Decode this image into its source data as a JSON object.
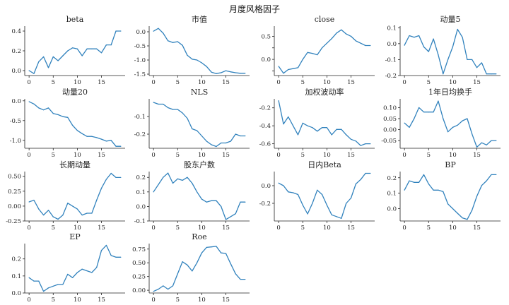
{
  "figure_title": "月度风格因子",
  "colors": {
    "line": "#3182bd",
    "axis": "#222222",
    "background": "#ffffff"
  },
  "chart_data": [
    {
      "type": "line",
      "title": "beta",
      "x": [
        0,
        1,
        2,
        3,
        4,
        5,
        6,
        7,
        8,
        9,
        10,
        11,
        12,
        13,
        14,
        15,
        16,
        17,
        18,
        19
      ],
      "values": [
        0.0,
        -0.03,
        0.09,
        0.14,
        0.03,
        0.14,
        0.1,
        0.15,
        0.2,
        0.23,
        0.22,
        0.15,
        0.22,
        0.22,
        0.22,
        0.18,
        0.26,
        0.26,
        0.4,
        0.4
      ],
      "ylim": [
        -0.05,
        0.45
      ],
      "yticks": [
        0.0,
        0.2,
        0.4
      ],
      "ytick_labels": [
        "0.0",
        "0.2",
        "0.4"
      ],
      "xticks": [
        0,
        5,
        10,
        15
      ],
      "xtick_labels": [
        "0",
        "5",
        "10",
        "15"
      ]
    },
    {
      "type": "line",
      "title": "市值",
      "x": [
        0,
        1,
        2,
        3,
        4,
        5,
        6,
        7,
        8,
        9,
        10,
        11,
        12,
        13,
        14,
        15,
        16,
        17,
        18,
        19
      ],
      "values": [
        0.02,
        0.12,
        -0.05,
        -0.32,
        -0.38,
        -0.35,
        -0.48,
        -0.83,
        -0.97,
        -1.0,
        -1.1,
        -1.23,
        -1.43,
        -1.48,
        -1.45,
        -1.38,
        -1.42,
        -1.45,
        -1.47,
        -1.47
      ],
      "ylim": [
        -1.55,
        0.2
      ],
      "yticks": [
        0.0,
        -0.5,
        -1.0,
        -1.5
      ],
      "ytick_labels": [
        "0.0",
        "-0.5",
        "-1.0",
        "-1.5"
      ],
      "xticks": [
        0,
        5,
        10,
        15
      ],
      "xtick_labels": [
        "0",
        "5",
        "10",
        "15"
      ]
    },
    {
      "type": "line",
      "title": "close",
      "x": [
        0,
        1,
        2,
        3,
        4,
        5,
        6,
        7,
        8,
        9,
        10,
        11,
        12,
        13,
        14,
        15,
        16,
        17,
        18,
        19
      ],
      "values": [
        -0.15,
        -0.3,
        -0.22,
        -0.2,
        -0.18,
        0.0,
        0.15,
        0.13,
        0.1,
        0.25,
        0.35,
        0.45,
        0.57,
        0.64,
        0.55,
        0.5,
        0.4,
        0.35,
        0.3,
        0.3
      ],
      "ylim": [
        -0.35,
        0.72
      ],
      "yticks": [
        -0.25,
        0.0,
        0.25,
        0.5
      ],
      "ytick_labels": [
        "",
        "0.0",
        "",
        "0.5"
      ],
      "xticks": [
        0,
        5,
        10,
        15
      ],
      "xtick_labels": [
        "0",
        "5",
        "10",
        "15"
      ]
    },
    {
      "type": "line",
      "title": "动量5",
      "x": [
        0,
        1,
        2,
        3,
        4,
        5,
        6,
        7,
        8,
        9,
        10,
        11,
        12,
        13,
        14,
        15,
        16,
        17,
        18,
        19
      ],
      "values": [
        -0.01,
        0.05,
        0.04,
        0.05,
        -0.02,
        -0.05,
        0.03,
        -0.07,
        -0.19,
        -0.1,
        -0.02,
        0.09,
        0.04,
        -0.1,
        -0.1,
        -0.15,
        -0.12,
        -0.19,
        -0.19,
        -0.19
      ],
      "ylim": [
        -0.2,
        0.11
      ],
      "yticks": [
        -0.2,
        -0.1,
        0.0,
        0.1
      ],
      "ytick_labels": [
        "-0.2",
        "-0.1",
        "0.0",
        "0.1"
      ],
      "xticks": [
        0,
        5,
        10,
        15
      ],
      "xtick_labels": [
        "0",
        "5",
        "10",
        "15"
      ]
    },
    {
      "type": "line",
      "title": "动量20",
      "x": [
        0,
        1,
        2,
        3,
        4,
        5,
        6,
        7,
        8,
        9,
        10,
        11,
        12,
        13,
        14,
        15,
        16,
        17,
        18,
        19
      ],
      "values": [
        -0.02,
        -0.08,
        -0.18,
        -0.23,
        -0.18,
        -0.32,
        -0.35,
        -0.4,
        -0.42,
        -0.62,
        -0.75,
        -0.83,
        -0.9,
        -0.9,
        -0.93,
        -0.97,
        -1.02,
        -1.0,
        -1.15,
        -1.15
      ],
      "ylim": [
        -1.2,
        0.05
      ],
      "yticks": [
        0.0,
        -0.5,
        -1.0
      ],
      "ytick_labels": [
        "0.0",
        "-0.5",
        "-1.0"
      ],
      "xticks": [
        0,
        5,
        10,
        15
      ],
      "xtick_labels": [
        "0",
        "5",
        "10",
        "15"
      ]
    },
    {
      "type": "line",
      "title": "NLS",
      "x": [
        0,
        1,
        2,
        3,
        4,
        5,
        6,
        7,
        8,
        9,
        10,
        11,
        12,
        13,
        14,
        15,
        16,
        17,
        18,
        19
      ],
      "values": [
        -0.02,
        -0.03,
        -0.03,
        -0.05,
        -0.06,
        -0.06,
        -0.08,
        -0.11,
        -0.17,
        -0.18,
        -0.21,
        -0.24,
        -0.26,
        -0.27,
        -0.25,
        -0.25,
        -0.24,
        -0.2,
        -0.21,
        -0.21
      ],
      "ylim": [
        -0.28,
        0.0
      ],
      "yticks": [
        -0.1,
        -0.2
      ],
      "ytick_labels": [
        "-0.1",
        "-0.2"
      ],
      "xticks": [
        0,
        5,
        10,
        15
      ],
      "xtick_labels": [
        "0",
        "5",
        "10",
        "15"
      ]
    },
    {
      "type": "line",
      "title": "加权波动率",
      "x": [
        0,
        1,
        2,
        3,
        4,
        5,
        6,
        7,
        8,
        9,
        10,
        11,
        12,
        13,
        14,
        15,
        16,
        17,
        18,
        19
      ],
      "values": [
        -0.12,
        -0.38,
        -0.3,
        -0.4,
        -0.5,
        -0.37,
        -0.4,
        -0.42,
        -0.46,
        -0.42,
        -0.42,
        -0.5,
        -0.44,
        -0.44,
        -0.5,
        -0.55,
        -0.57,
        -0.62,
        -0.6,
        -0.6
      ],
      "ylim": [
        -0.65,
        -0.1
      ],
      "yticks": [
        -0.2,
        -0.4,
        -0.6
      ],
      "ytick_labels": [
        "-0.2",
        "-0.4",
        "-0.6"
      ],
      "xticks": [
        0,
        5,
        10,
        15
      ],
      "xtick_labels": [
        "0",
        "5",
        "10",
        "15"
      ]
    },
    {
      "type": "line",
      "title": "1年日均换手",
      "x": [
        0,
        1,
        2,
        3,
        4,
        5,
        6,
        7,
        8,
        9,
        10,
        11,
        12,
        13,
        14,
        15,
        16,
        17,
        18,
        19
      ],
      "values": [
        0.03,
        0.01,
        0.05,
        0.1,
        0.08,
        0.08,
        0.08,
        0.13,
        0.05,
        -0.01,
        0.01,
        0.02,
        0.04,
        0.05,
        -0.02,
        -0.08,
        -0.06,
        -0.07,
        -0.05,
        -0.05
      ],
      "ylim": [
        -0.085,
        0.14
      ],
      "yticks": [
        -0.05,
        0.0,
        0.05,
        0.1
      ],
      "ytick_labels": [
        "-0.05",
        "0.00",
        "0.05",
        "0.10"
      ],
      "xticks": [
        0,
        5,
        10,
        15
      ],
      "xtick_labels": [
        "0",
        "5",
        "10",
        "15"
      ]
    },
    {
      "type": "line",
      "title": "长期动量",
      "x": [
        0,
        1,
        2,
        3,
        4,
        5,
        6,
        7,
        8,
        9,
        10,
        11,
        12,
        13,
        14,
        15,
        16,
        17,
        18,
        19
      ],
      "values": [
        0.07,
        0.1,
        -0.05,
        -0.15,
        -0.07,
        -0.18,
        -0.22,
        -0.15,
        0.05,
        0.0,
        -0.05,
        -0.15,
        -0.12,
        -0.12,
        0.1,
        0.3,
        0.45,
        0.55,
        0.48,
        0.48
      ],
      "ylim": [
        -0.25,
        0.58
      ],
      "yticks": [
        -0.25,
        0.0,
        0.25,
        0.5
      ],
      "ytick_labels": [
        "-0.25",
        "0.00",
        "0.25",
        "0.50"
      ],
      "xticks": [
        0,
        5,
        10,
        15
      ],
      "xtick_labels": [
        "0",
        "5",
        "10",
        "15"
      ]
    },
    {
      "type": "line",
      "title": "股东户数",
      "x": [
        0,
        1,
        2,
        3,
        4,
        5,
        6,
        7,
        8,
        9,
        10,
        11,
        12,
        13,
        14,
        15,
        16,
        17,
        18,
        19
      ],
      "values": [
        0.1,
        0.15,
        0.2,
        0.23,
        0.16,
        0.19,
        0.18,
        0.2,
        0.16,
        0.1,
        0.05,
        0.03,
        0.04,
        0.04,
        0.0,
        -0.09,
        -0.07,
        -0.05,
        0.03,
        0.03
      ],
      "ylim": [
        -0.1,
        0.24
      ],
      "yticks": [
        -0.1,
        0.0,
        0.1,
        0.2
      ],
      "ytick_labels": [
        "-0.1",
        "0.0",
        "0.1",
        "0.2"
      ],
      "xticks": [
        0,
        5,
        10,
        15
      ],
      "xtick_labels": [
        "0",
        "5",
        "10",
        "15"
      ]
    },
    {
      "type": "line",
      "title": "日内Beta",
      "x": [
        0,
        1,
        2,
        3,
        4,
        5,
        6,
        7,
        8,
        9,
        10,
        11,
        12,
        13,
        14,
        15,
        16,
        17,
        18,
        19
      ],
      "values": [
        0.03,
        0.0,
        -0.07,
        -0.08,
        -0.1,
        -0.22,
        -0.32,
        -0.2,
        -0.05,
        -0.1,
        -0.22,
        -0.33,
        -0.35,
        -0.37,
        -0.2,
        -0.14,
        0.02,
        0.07,
        0.14,
        0.14
      ],
      "ylim": [
        -0.4,
        0.16
      ],
      "yticks": [
        0.0,
        -0.2
      ],
      "ytick_labels": [
        "0.0",
        "-0.2"
      ],
      "xticks": [
        0,
        5,
        10,
        15
      ],
      "xtick_labels": [
        "0",
        "5",
        "10",
        "15"
      ]
    },
    {
      "type": "line",
      "title": "BP",
      "x": [
        0,
        1,
        2,
        3,
        4,
        5,
        6,
        7,
        8,
        9,
        10,
        11,
        12,
        13,
        14,
        15,
        16,
        17,
        18,
        19
      ],
      "values": [
        0.12,
        0.18,
        0.17,
        0.17,
        0.22,
        0.16,
        0.12,
        0.12,
        0.11,
        0.03,
        0.0,
        -0.03,
        -0.06,
        -0.07,
        -0.01,
        0.08,
        0.15,
        0.18,
        0.22,
        0.22
      ],
      "ylim": [
        -0.08,
        0.24
      ],
      "yticks": [
        0.0,
        0.1,
        0.2
      ],
      "ytick_labels": [
        "0.0",
        "0.1",
        "0.2"
      ],
      "xticks": [
        0,
        5,
        10,
        15
      ],
      "xtick_labels": [
        "0",
        "5",
        "10",
        "15"
      ]
    },
    {
      "type": "line",
      "title": "EP",
      "x": [
        0,
        1,
        2,
        3,
        4,
        5,
        6,
        7,
        8,
        9,
        10,
        11,
        12,
        13,
        14,
        15,
        16,
        17,
        18,
        19
      ],
      "values": [
        0.09,
        0.07,
        0.07,
        0.01,
        0.03,
        0.04,
        0.05,
        0.05,
        0.11,
        0.09,
        0.12,
        0.14,
        0.13,
        0.12,
        0.15,
        0.25,
        0.28,
        0.22,
        0.21,
        0.21
      ],
      "ylim": [
        0.0,
        0.29
      ],
      "yticks": [
        0.0,
        0.1,
        0.2
      ],
      "ytick_labels": [
        "0.0",
        "0.1",
        "0.2"
      ],
      "xticks": [
        0,
        5,
        10,
        15
      ],
      "xtick_labels": [
        "0",
        "5",
        "10",
        "15"
      ]
    },
    {
      "type": "line",
      "title": "Roe",
      "x": [
        0,
        1,
        2,
        3,
        4,
        5,
        6,
        7,
        8,
        9,
        10,
        11,
        12,
        13,
        14,
        15,
        16,
        17,
        18,
        19
      ],
      "values": [
        -0.02,
        0.02,
        0.08,
        0.02,
        0.08,
        0.3,
        0.52,
        0.46,
        0.35,
        0.5,
        0.68,
        0.78,
        0.79,
        0.8,
        0.68,
        0.67,
        0.48,
        0.3,
        0.2,
        0.2
      ],
      "ylim": [
        -0.05,
        0.85
      ],
      "yticks": [
        0.0,
        0.25,
        0.5,
        0.75
      ],
      "ytick_labels": [
        "0.00",
        "0.25",
        "0.50",
        "0.75"
      ],
      "xticks": [
        0,
        5,
        10,
        15
      ],
      "xtick_labels": [
        "0",
        "5",
        "10",
        "15"
      ]
    }
  ]
}
